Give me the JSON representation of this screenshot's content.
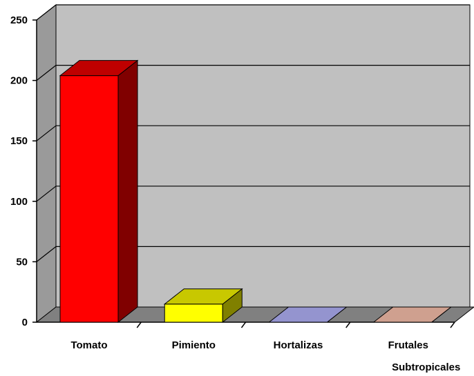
{
  "chart_data": {
    "type": "bar",
    "title": "",
    "xlabel": "",
    "ylabel": "",
    "categories": [
      "Tomato",
      "Pimiento",
      "Hortalizas",
      "Frutales Subtropicales"
    ],
    "values": [
      204,
      15,
      0,
      0
    ],
    "ylim": [
      0,
      250
    ],
    "yticks": [
      0,
      50,
      100,
      150,
      200,
      250
    ],
    "grid": true,
    "legend": "none",
    "colors": {
      "bars": [
        "#ff0000",
        "#ffff00",
        "#9999cc",
        "#cc9988"
      ],
      "bar_tops": [
        "#bf0000",
        "#c8c800",
        "#9494cf",
        "#cfa08f"
      ],
      "bar_sides": [
        "#800000",
        "#808000",
        "#6a6aa5",
        "#9e7666"
      ],
      "wall": "#c0c0c0",
      "floor": "#808080",
      "gridline": "#000000",
      "axis_text": "#000000"
    }
  }
}
